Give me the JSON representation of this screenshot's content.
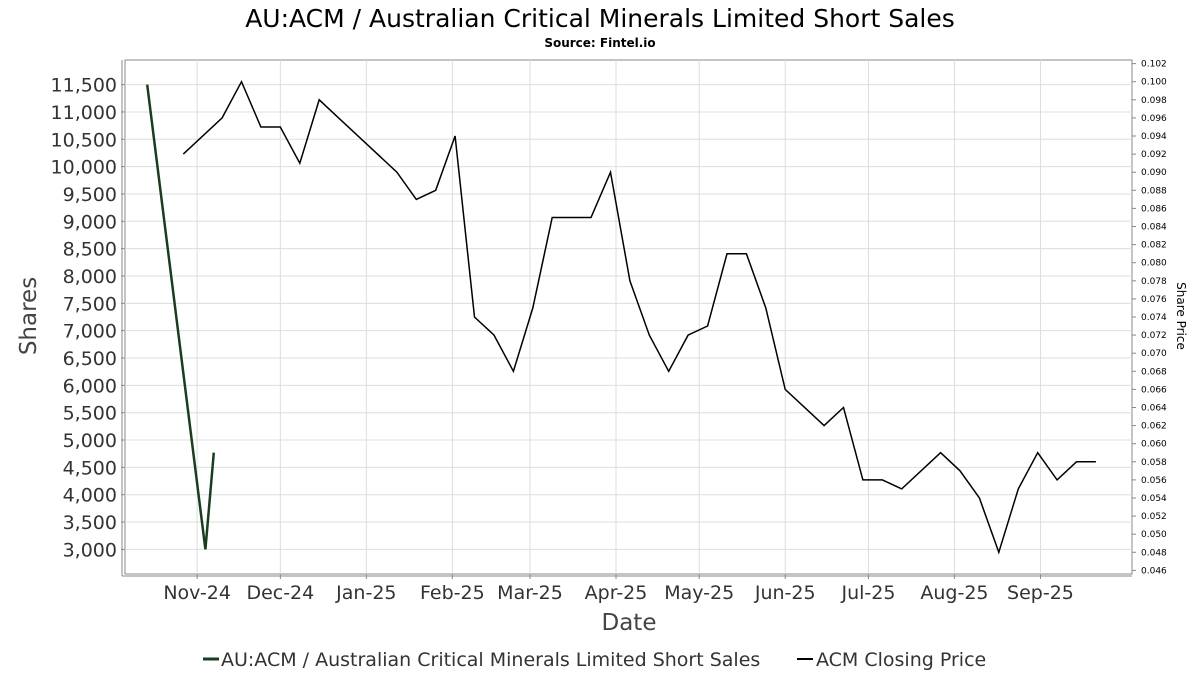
{
  "chart_data": {
    "type": "line",
    "title": "AU:ACM / Australian Critical Minerals Limited Short Sales",
    "subtitle": "Source: Fintel.io",
    "xlabel": "Date",
    "ylabel": "Shares",
    "y2label": "Share Price",
    "x_tick_labels": [
      "Nov-24",
      "Dec-24",
      "Jan-25",
      "Feb-25",
      "Mar-25",
      "Apr-25",
      "May-25",
      "Jun-25",
      "Jul-25",
      "Aug-25",
      "Sep-25"
    ],
    "x_tick_dates": [
      "2024-11-01",
      "2024-12-01",
      "2025-01-01",
      "2025-02-01",
      "2025-03-01",
      "2025-04-01",
      "2025-05-01",
      "2025-06-01",
      "2025-07-01",
      "2025-08-01",
      "2025-09-01"
    ],
    "xlim": [
      "2024-10-06",
      "2025-10-04"
    ],
    "ylim": [
      2550,
      11950
    ],
    "y_ticks": [
      3000,
      3500,
      4000,
      4500,
      5000,
      5500,
      6000,
      6500,
      7000,
      7500,
      8000,
      8500,
      9000,
      9500,
      10000,
      10500,
      11000,
      11500
    ],
    "y2lim": [
      0.0456,
      0.1024
    ],
    "y2_ticks": [
      0.046,
      0.048,
      0.05,
      0.052,
      0.054,
      0.056,
      0.058,
      0.06,
      0.062,
      0.064,
      0.066,
      0.068,
      0.07,
      0.072,
      0.074,
      0.076,
      0.078,
      0.08,
      0.082,
      0.084,
      0.086,
      0.088,
      0.09,
      0.092,
      0.094,
      0.096,
      0.098,
      0.1,
      0.102
    ],
    "grid": true,
    "legend_position": "bottom",
    "series": [
      {
        "name": "AU:ACM / Australian Critical Minerals Limited Short Sales",
        "axis": "left",
        "color": "#1b3d1f",
        "x": [
          "2024-10-14",
          "2024-11-04",
          "2024-11-07"
        ],
        "values": [
          11500,
          3000,
          4770
        ]
      },
      {
        "name": "ACM Closing Price",
        "axis": "right",
        "color": "#000000",
        "x": [
          "2024-10-27",
          "2024-11-10",
          "2024-11-17",
          "2024-11-24",
          "2024-12-01",
          "2024-12-08",
          "2024-12-15",
          "2024-12-22",
          "2025-01-12",
          "2025-01-19",
          "2025-01-26",
          "2025-02-02",
          "2025-02-09",
          "2025-02-16",
          "2025-02-23",
          "2025-03-02",
          "2025-03-09",
          "2025-03-16",
          "2025-03-23",
          "2025-03-30",
          "2025-04-06",
          "2025-04-13",
          "2025-04-20",
          "2025-04-27",
          "2025-05-04",
          "2025-05-11",
          "2025-05-18",
          "2025-05-25",
          "2025-06-01",
          "2025-06-15",
          "2025-06-22",
          "2025-06-29",
          "2025-07-06",
          "2025-07-13",
          "2025-07-27",
          "2025-08-03",
          "2025-08-10",
          "2025-08-17",
          "2025-08-24",
          "2025-08-31",
          "2025-09-07",
          "2025-09-14",
          "2025-09-21"
        ],
        "values": [
          0.092,
          0.096,
          0.1,
          0.095,
          0.095,
          0.091,
          0.098,
          0.096,
          0.09,
          0.087,
          0.088,
          0.094,
          0.074,
          0.072,
          0.068,
          0.075,
          0.085,
          0.085,
          0.085,
          0.09,
          0.078,
          0.072,
          0.068,
          0.072,
          0.073,
          0.081,
          0.081,
          0.075,
          0.066,
          0.062,
          0.064,
          0.056,
          0.056,
          0.055,
          0.059,
          0.057,
          0.054,
          0.048,
          0.055,
          0.059,
          0.056,
          0.058,
          0.058
        ]
      }
    ]
  }
}
